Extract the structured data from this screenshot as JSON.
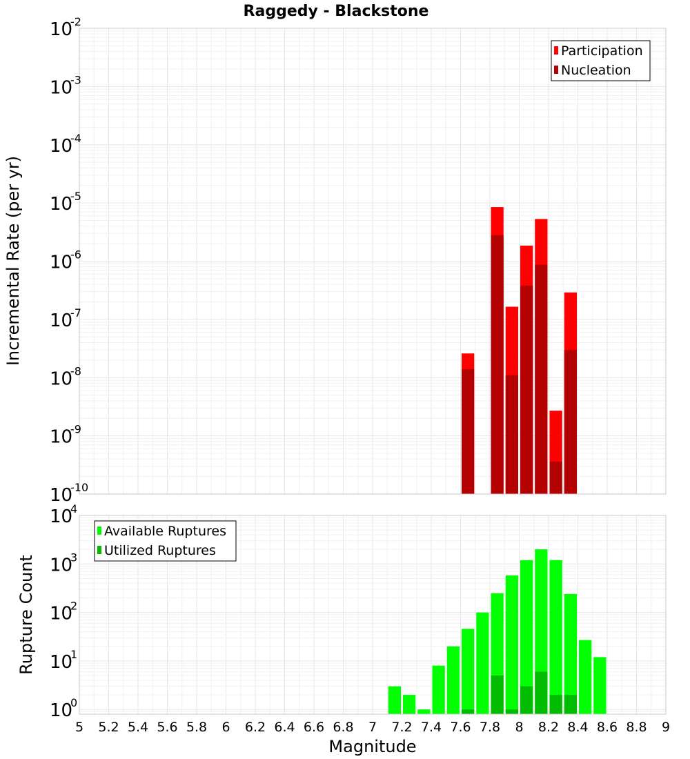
{
  "chart_data": [
    {
      "type": "bar",
      "title": "Raggedy - Blackstone",
      "xlabel": "",
      "ylabel": "Incremental Rate (per yr)",
      "xlim": [
        5,
        9
      ],
      "ylim": [
        1e-10,
        0.01
      ],
      "yscale": "log",
      "grid": true,
      "legend": "top-right",
      "bin_width": 0.1,
      "ytick_exponents": [
        "-10",
        "-9",
        "-8",
        "-7",
        "-6",
        "-5",
        "-4",
        "-3",
        "-2"
      ],
      "series": [
        {
          "name": "Participation",
          "color": "#ff0000",
          "x": [
            7.65,
            7.85,
            7.95,
            8.05,
            8.15,
            8.25,
            8.35
          ],
          "values": [
            2.6e-08,
            8.5e-06,
            1.65e-07,
            1.85e-06,
            5.3e-06,
            2.7e-09,
            2.9e-07
          ]
        },
        {
          "name": "Nucleation",
          "color": "#b30000",
          "x": [
            7.65,
            7.85,
            7.95,
            8.05,
            8.15,
            8.25,
            8.35
          ],
          "values": [
            1.4e-08,
            2.8e-06,
            1.1e-08,
            3.8e-07,
            8.7e-07,
            3.6e-10,
            3e-08
          ]
        }
      ]
    },
    {
      "type": "bar",
      "title": "",
      "xlabel": "Magnitude",
      "ylabel": "Rupture Count",
      "xlim": [
        5,
        9
      ],
      "ylim": [
        0.8,
        10000
      ],
      "yscale": "log",
      "grid": true,
      "legend": "top-left",
      "bin_width": 0.1,
      "xticks": [
        "5",
        "5.2",
        "5.4",
        "5.6",
        "5.8",
        "6",
        "6.2",
        "6.4",
        "6.6",
        "6.8",
        "7",
        "7.2",
        "7.4",
        "7.6",
        "7.8",
        "8",
        "8.2",
        "8.4",
        "8.6",
        "8.8",
        "9"
      ],
      "ytick_exponents": [
        "0",
        "1",
        "2",
        "3",
        "4"
      ],
      "series": [
        {
          "name": "Available Ruptures",
          "color": "#00ff00",
          "x": [
            7.15,
            7.25,
            7.35,
            7.45,
            7.55,
            7.65,
            7.75,
            7.85,
            7.95,
            8.05,
            8.15,
            8.25,
            8.35,
            8.45,
            8.55
          ],
          "values": [
            3,
            2,
            1,
            8,
            20,
            46,
            100,
            250,
            580,
            1200,
            2000,
            1200,
            240,
            27,
            12
          ]
        },
        {
          "name": "Utilized Ruptures",
          "color": "#00bb00",
          "x": [
            7.65,
            7.85,
            7.95,
            8.05,
            8.15,
            8.25,
            8.35
          ],
          "values": [
            1,
            5,
            1,
            3,
            6,
            2,
            2
          ]
        }
      ]
    }
  ]
}
